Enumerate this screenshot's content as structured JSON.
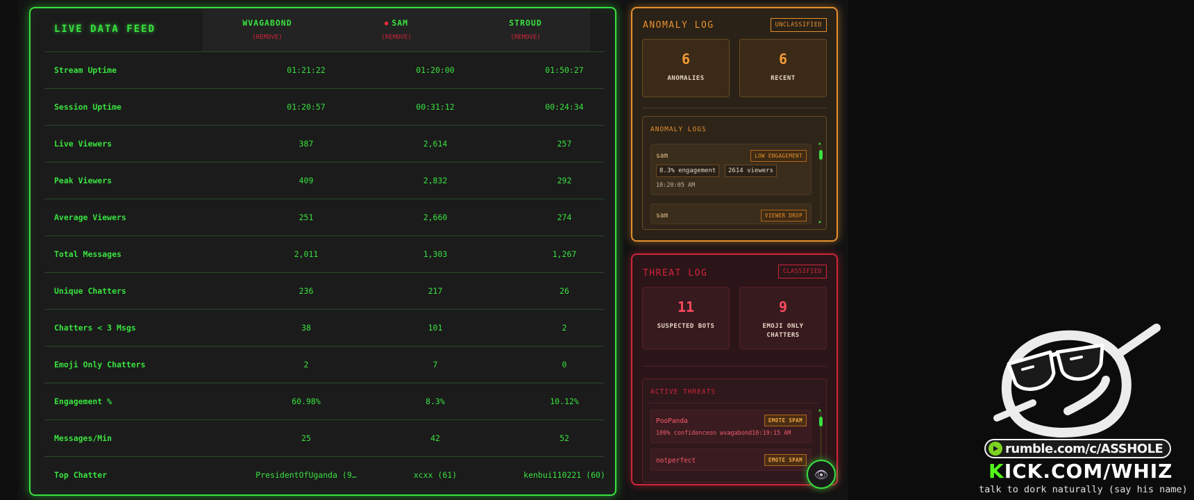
{
  "feed": {
    "title": "LIVE DATA FEED",
    "columns": [
      {
        "name": "WVAGABOND",
        "remove": "(REMOVE)",
        "live": false
      },
      {
        "name": "SAM",
        "remove": "(REMOVE)",
        "live": true
      },
      {
        "name": "STROUD",
        "remove": "(REMOVE)",
        "live": false
      }
    ],
    "rows": [
      {
        "label": "Stream Uptime",
        "values": [
          "01:21:22",
          "01:20:00",
          "01:50:27"
        ]
      },
      {
        "label": "Session Uptime",
        "values": [
          "01:20:57",
          "00:31:12",
          "00:24:34"
        ]
      },
      {
        "label": "Live Viewers",
        "values": [
          "387",
          "2,614",
          "257"
        ]
      },
      {
        "label": "Peak Viewers",
        "values": [
          "409",
          "2,832",
          "292"
        ]
      },
      {
        "label": "Average Viewers",
        "values": [
          "251",
          "2,660",
          "274"
        ]
      },
      {
        "label": "Total Messages",
        "values": [
          "2,011",
          "1,303",
          "1,267"
        ]
      },
      {
        "label": "Unique Chatters",
        "values": [
          "236",
          "217",
          "26"
        ]
      },
      {
        "label": "Chatters < 3 Msgs",
        "values": [
          "38",
          "101",
          "2"
        ]
      },
      {
        "label": "Emoji Only Chatters",
        "values": [
          "2",
          "7",
          "0"
        ]
      },
      {
        "label": "Engagement %",
        "values": [
          "60.98%",
          "8.3%",
          "10.12%"
        ]
      },
      {
        "label": "Messages/Min",
        "values": [
          "25",
          "42",
          "52"
        ]
      },
      {
        "label": "Top Chatter",
        "values": [
          "PresidentOfUganda (9…",
          "xcxx (61)",
          "kenbui110221 (60)"
        ]
      }
    ]
  },
  "anomaly": {
    "title": "ANOMALY LOG",
    "tag": "UNCLASSIFIED",
    "stats": [
      {
        "value": "6",
        "label": "ANOMALIES"
      },
      {
        "value": "6",
        "label": "RECENT"
      }
    ],
    "logs_title": "ANOMALY LOGS",
    "entries": [
      {
        "name": "sam",
        "badge": "LOW ENGAGEMENT",
        "chips": [
          "8.3% engagement",
          "2614 viewers"
        ],
        "time": "10:20:05 AM"
      },
      {
        "name": "sam",
        "badge": "VIEWER DROP"
      }
    ]
  },
  "threat": {
    "title": "THREAT LOG",
    "tag": "CLASSIFIED",
    "stats": [
      {
        "value": "11",
        "label": "SUSPECTED BOTS"
      },
      {
        "value": "9",
        "label": "EMOJI ONLY CHATTERS"
      }
    ],
    "active_title": "ACTIVE THREATS",
    "entries": [
      {
        "name": "PooPanda",
        "badge": "EMOTE SPAM",
        "detail": "100% confidenceon wvagabond10:19:15 AM"
      },
      {
        "name": "notperfect",
        "badge": "EMOTE SPAM"
      }
    ]
  },
  "overlay": {
    "rumble": "rumble.com/c/ASSHOLE",
    "kick_k": "K",
    "kick_rest": "ICK.COM/WHIZ",
    "tagline": "talk to dork naturally (say his name)"
  },
  "icons": {
    "eye": "eye-icon"
  },
  "colors": {
    "green": "#39e23f",
    "orange": "#e8902d",
    "red": "#d0253a",
    "kick_green": "#53fc18"
  }
}
